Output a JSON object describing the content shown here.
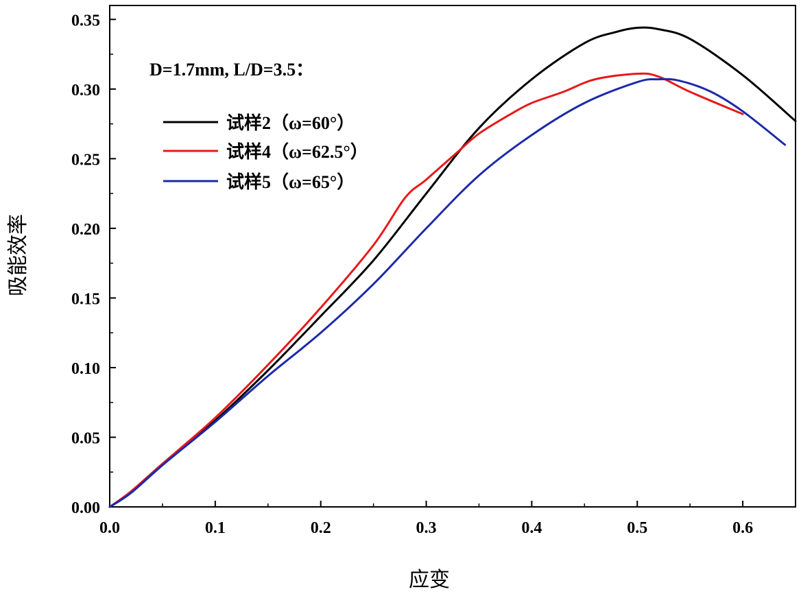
{
  "chart_data": {
    "type": "line",
    "title": "",
    "xlabel": "应变",
    "ylabel": "吸能效率",
    "xlim": [
      0.0,
      0.65
    ],
    "ylim": [
      0.0,
      0.36
    ],
    "xticks": [
      "0.0",
      "0.1",
      "0.2",
      "0.3",
      "0.4",
      "0.5",
      "0.6"
    ],
    "xtick_values": [
      0.0,
      0.1,
      0.2,
      0.3,
      0.4,
      0.5,
      0.6
    ],
    "yticks": [
      "0.00",
      "0.05",
      "0.10",
      "0.15",
      "0.20",
      "0.25",
      "0.30",
      "0.35"
    ],
    "ytick_values": [
      0.0,
      0.05,
      0.1,
      0.15,
      0.2,
      0.25,
      0.3,
      0.35
    ],
    "grid": false,
    "legend_position": "top-left",
    "annotation": "D=1.7mm, L/D=3.5：",
    "series": [
      {
        "name": "试样2（ω=60°）",
        "color": "#000000",
        "x": [
          0.0,
          0.02,
          0.05,
          0.1,
          0.15,
          0.2,
          0.25,
          0.3,
          0.35,
          0.4,
          0.45,
          0.48,
          0.5,
          0.52,
          0.55,
          0.6,
          0.65
        ],
        "y": [
          0.0,
          0.01,
          0.03,
          0.062,
          0.098,
          0.137,
          0.177,
          0.225,
          0.272,
          0.307,
          0.333,
          0.341,
          0.344,
          0.343,
          0.336,
          0.31,
          0.277
        ]
      },
      {
        "name": "试样4（ω=62.5°）",
        "color": "#e8191a",
        "x": [
          0.0,
          0.02,
          0.05,
          0.1,
          0.15,
          0.2,
          0.25,
          0.28,
          0.3,
          0.33,
          0.35,
          0.38,
          0.4,
          0.43,
          0.46,
          0.5,
          0.52,
          0.55,
          0.6
        ],
        "y": [
          0.0,
          0.011,
          0.031,
          0.064,
          0.102,
          0.143,
          0.188,
          0.222,
          0.235,
          0.255,
          0.268,
          0.282,
          0.29,
          0.298,
          0.307,
          0.311,
          0.309,
          0.298,
          0.282
        ]
      },
      {
        "name": "试样5（ω=65°）",
        "color": "#1c2aa8",
        "x": [
          0.0,
          0.02,
          0.05,
          0.1,
          0.15,
          0.2,
          0.25,
          0.3,
          0.35,
          0.4,
          0.45,
          0.5,
          0.52,
          0.54,
          0.57,
          0.6,
          0.64
        ],
        "y": [
          0.0,
          0.01,
          0.03,
          0.061,
          0.094,
          0.125,
          0.16,
          0.2,
          0.238,
          0.267,
          0.29,
          0.305,
          0.307,
          0.306,
          0.298,
          0.284,
          0.26
        ]
      }
    ]
  }
}
